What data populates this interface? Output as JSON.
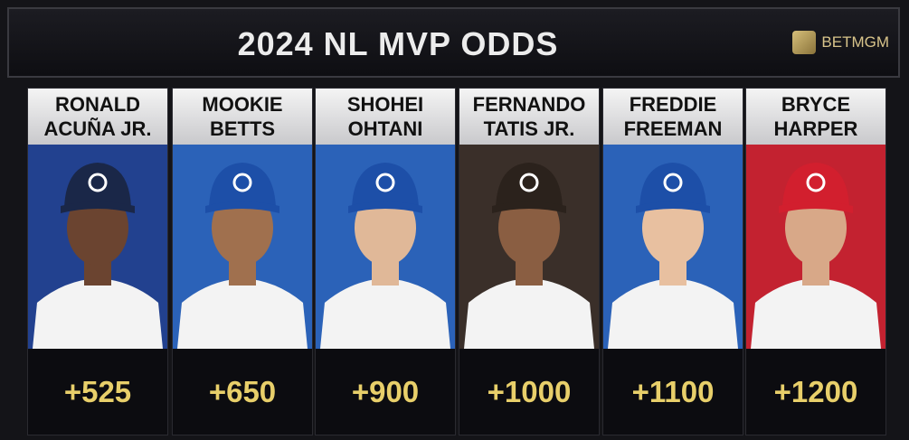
{
  "header": {
    "title": "2024 NL MVP ODDS",
    "brand": "BETMGM"
  },
  "cards": [
    {
      "name": [
        "RONALD",
        "ACUÑA JR."
      ],
      "odds": "+525"
    },
    {
      "name": [
        "MOOKIE",
        "BETTS"
      ],
      "odds": "+650"
    },
    {
      "name": [
        "SHOHEI",
        "OHTANI"
      ],
      "odds": "+900"
    },
    {
      "name": [
        "FERNANDO",
        "TATIS JR."
      ],
      "odds": "+1000"
    },
    {
      "name": [
        "FREDDIE",
        "FREEMAN"
      ],
      "odds": "+1100"
    },
    {
      "name": [
        "BRYCE",
        "HARPER"
      ],
      "odds": "+1200"
    }
  ]
}
